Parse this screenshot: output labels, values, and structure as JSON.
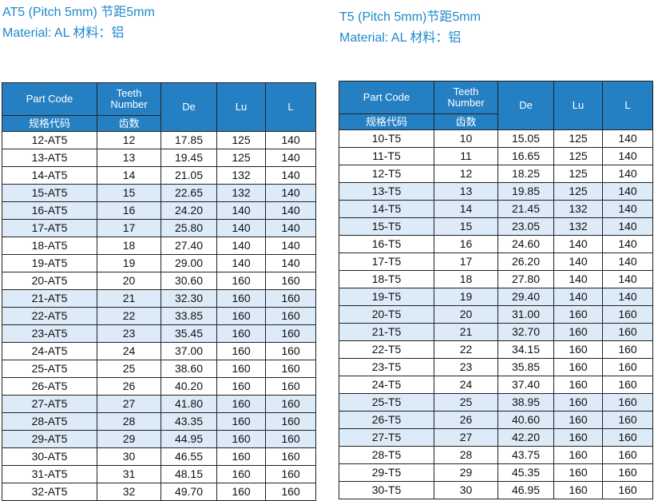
{
  "left": {
    "title": "AT5 (Pitch 5mm) 节距5mm",
    "material": "Material: AL 材料：铝",
    "table": {
      "headers": [
        "Part Code",
        "Teeth Number",
        "De",
        "Lu",
        "L"
      ],
      "subheaders": [
        "规格代码",
        "齿数"
      ],
      "rows": [
        [
          "12-AT5",
          "12",
          "17.85",
          "125",
          "140"
        ],
        [
          "13-AT5",
          "13",
          "19.45",
          "125",
          "140"
        ],
        [
          "14-AT5",
          "14",
          "21.05",
          "132",
          "140"
        ],
        [
          "15-AT5",
          "15",
          "22.65",
          "132",
          "140"
        ],
        [
          "16-AT5",
          "16",
          "24.20",
          "140",
          "140"
        ],
        [
          "17-AT5",
          "17",
          "25.80",
          "140",
          "140"
        ],
        [
          "18-AT5",
          "18",
          "27.40",
          "140",
          "140"
        ],
        [
          "19-AT5",
          "19",
          "29.00",
          "140",
          "140"
        ],
        [
          "20-AT5",
          "20",
          "30.60",
          "160",
          "160"
        ],
        [
          "21-AT5",
          "21",
          "32.30",
          "160",
          "160"
        ],
        [
          "22-AT5",
          "22",
          "33.85",
          "160",
          "160"
        ],
        [
          "23-AT5",
          "23",
          "35.45",
          "160",
          "160"
        ],
        [
          "24-AT5",
          "24",
          "37.00",
          "160",
          "160"
        ],
        [
          "25-AT5",
          "25",
          "38.60",
          "160",
          "160"
        ],
        [
          "26-AT5",
          "26",
          "40.20",
          "160",
          "160"
        ],
        [
          "27-AT5",
          "27",
          "41.80",
          "160",
          "160"
        ],
        [
          "28-AT5",
          "28",
          "43.35",
          "160",
          "160"
        ],
        [
          "29-AT5",
          "29",
          "44.95",
          "160",
          "160"
        ],
        [
          "30-AT5",
          "30",
          "46.55",
          "160",
          "160"
        ],
        [
          "31-AT5",
          "31",
          "48.15",
          "160",
          "160"
        ],
        [
          "32-AT5",
          "32",
          "49.70",
          "160",
          "160"
        ]
      ]
    }
  },
  "right": {
    "title": "T5 (Pitch 5mm)节距5mm",
    "material": "Material: AL 材料：铝",
    "table": {
      "headers": [
        "Part Code",
        "Teeth Number",
        "De",
        "Lu",
        "L"
      ],
      "subheaders": [
        "规格代码",
        "齿数"
      ],
      "rows": [
        [
          "10-T5",
          "10",
          "15.05",
          "125",
          "140"
        ],
        [
          "11-T5",
          "11",
          "16.65",
          "125",
          "140"
        ],
        [
          "12-T5",
          "12",
          "18.25",
          "125",
          "140"
        ],
        [
          "13-T5",
          "13",
          "19.85",
          "125",
          "140"
        ],
        [
          "14-T5",
          "14",
          "21.45",
          "132",
          "140"
        ],
        [
          "15-T5",
          "15",
          "23.05",
          "132",
          "140"
        ],
        [
          "16-T5",
          "16",
          "24.60",
          "140",
          "140"
        ],
        [
          "17-T5",
          "17",
          "26.20",
          "140",
          "140"
        ],
        [
          "18-T5",
          "18",
          "27.80",
          "140",
          "140"
        ],
        [
          "19-T5",
          "19",
          "29.40",
          "140",
          "140"
        ],
        [
          "20-T5",
          "20",
          "31.00",
          "160",
          "160"
        ],
        [
          "21-T5",
          "21",
          "32.70",
          "160",
          "160"
        ],
        [
          "22-T5",
          "22",
          "34.15",
          "160",
          "160"
        ],
        [
          "23-T5",
          "23",
          "35.85",
          "160",
          "160"
        ],
        [
          "24-T5",
          "24",
          "37.40",
          "160",
          "160"
        ],
        [
          "25-T5",
          "25",
          "38.95",
          "160",
          "160"
        ],
        [
          "26-T5",
          "26",
          "40.60",
          "160",
          "160"
        ],
        [
          "27-T5",
          "27",
          "42.20",
          "160",
          "160"
        ],
        [
          "28-T5",
          "28",
          "43.75",
          "160",
          "160"
        ],
        [
          "29-T5",
          "29",
          "45.35",
          "160",
          "160"
        ],
        [
          "30-T5",
          "30",
          "46.95",
          "160",
          "160"
        ]
      ]
    }
  }
}
